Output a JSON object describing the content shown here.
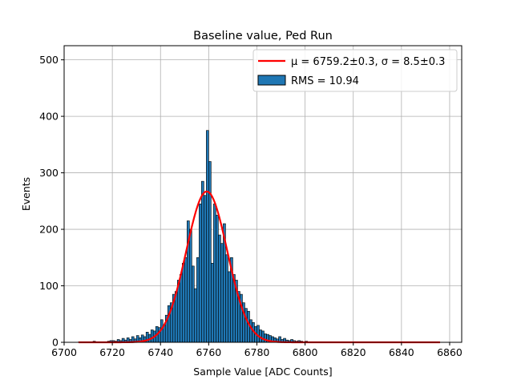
{
  "chart_data": {
    "type": "bar",
    "title": "Baseline value, Ped Run",
    "xlabel": "Sample Value [ADC Counts]",
    "ylabel": "Events",
    "xlim": [
      6700,
      6865
    ],
    "ylim": [
      0,
      525
    ],
    "xticks": [
      6700,
      6720,
      6740,
      6760,
      6780,
      6800,
      6820,
      6840,
      6860
    ],
    "yticks": [
      0,
      100,
      200,
      300,
      400,
      500
    ],
    "grid": true,
    "legend_position": "top-right",
    "colors": {
      "bars": "#1f77b4",
      "bar_edge": "#000000",
      "fit": "#ff0000",
      "grid": "#b0b0b0"
    },
    "legend": [
      {
        "label": "μ = 6759.2±0.3, σ = 8.5±0.3",
        "kind": "line"
      },
      {
        "label": "RMS = 10.94",
        "kind": "patch"
      }
    ],
    "series": [
      {
        "name": "RMS = 10.94",
        "type": "histogram",
        "bin_width": 1,
        "x": [
          6706,
          6708,
          6710,
          6712,
          6714,
          6716,
          6718,
          6719,
          6720,
          6721,
          6722,
          6723,
          6724,
          6725,
          6726,
          6727,
          6728,
          6729,
          6730,
          6731,
          6732,
          6733,
          6734,
          6735,
          6736,
          6737,
          6738,
          6739,
          6740,
          6741,
          6742,
          6743,
          6744,
          6745,
          6746,
          6747,
          6748,
          6749,
          6750,
          6751,
          6752,
          6753,
          6754,
          6755,
          6756,
          6757,
          6758,
          6759,
          6760,
          6761,
          6762,
          6763,
          6764,
          6765,
          6766,
          6767,
          6768,
          6769,
          6770,
          6771,
          6772,
          6773,
          6774,
          6775,
          6776,
          6777,
          6778,
          6779,
          6780,
          6781,
          6782,
          6783,
          6784,
          6785,
          6786,
          6787,
          6788,
          6789,
          6790,
          6791,
          6792,
          6793,
          6794,
          6795,
          6796,
          6797,
          6798,
          6799,
          6800,
          6802,
          6804,
          6806,
          6810,
          6815,
          6820,
          6830,
          6845
        ],
        "values": [
          1,
          1,
          0,
          2,
          1,
          1,
          2,
          3,
          3,
          2,
          5,
          3,
          7,
          4,
          8,
          5,
          10,
          6,
          12,
          8,
          13,
          10,
          18,
          14,
          22,
          20,
          28,
          26,
          40,
          30,
          48,
          65,
          70,
          85,
          90,
          110,
          120,
          140,
          150,
          215,
          200,
          135,
          95,
          150,
          245,
          285,
          260,
          375,
          320,
          140,
          245,
          225,
          190,
          175,
          210,
          155,
          125,
          150,
          120,
          110,
          90,
          85,
          70,
          60,
          55,
          40,
          35,
          28,
          30,
          22,
          20,
          15,
          14,
          12,
          10,
          8,
          6,
          10,
          5,
          7,
          4,
          3,
          5,
          3,
          2,
          3,
          2,
          1,
          2,
          1,
          1,
          1,
          1,
          1,
          1,
          1,
          1
        ]
      },
      {
        "name": "μ = 6759.2±0.3, σ = 8.5±0.3",
        "type": "line",
        "model": "gaussian",
        "amplitude": 267,
        "mu": 6759.2,
        "sigma": 8.5,
        "x_range": [
          6706,
          6856
        ]
      }
    ]
  }
}
